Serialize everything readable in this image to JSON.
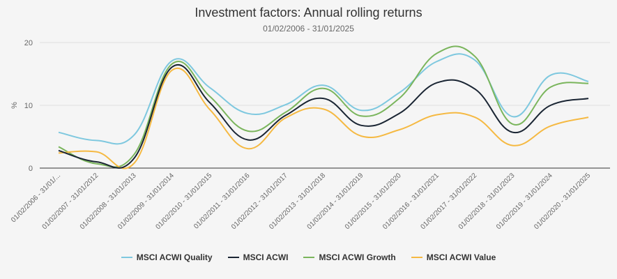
{
  "chart_data": {
    "type": "line",
    "title": "Investment factors: Annual rolling returns",
    "subtitle": "01/02/2006 - 31/01/2025",
    "ylabel": "%",
    "xlabel": "",
    "ylim": [
      0,
      20
    ],
    "yticks": [
      0,
      10,
      20
    ],
    "grid": true,
    "legend": "bottom",
    "categories": [
      "01/02/2006 - 31/01/...",
      "01/02/2007 - 31/01/2012",
      "01/02/2008 - 31/01/2013",
      "01/02/2009 - 31/01/2014",
      "01/02/2010 - 31/01/2015",
      "01/02/2011 - 31/01/2016",
      "01/02/2012 - 31/01/2017",
      "01/02/2013 - 31/01/2018",
      "01/02/2014 - 31/01/2019",
      "01/02/2015 - 31/01/2020",
      "01/02/2016 - 31/01/2021",
      "01/02/2017 - 31/01/2022",
      "01/02/2018 - 31/01/2023",
      "01/02/2019 - 31/01/2024",
      "01/02/2020 - 31/01/2025"
    ],
    "series": [
      {
        "name": "MSCI ACWI Quality",
        "color": "#7ec8df",
        "values": [
          5.7,
          4.4,
          5.3,
          17.1,
          12.8,
          8.7,
          10.1,
          13.2,
          9.2,
          12.0,
          17.0,
          17.2,
          8.2,
          14.8,
          13.8
        ]
      },
      {
        "name": "MSCI ACWI",
        "color": "#1a2533",
        "values": [
          2.8,
          1.0,
          1.6,
          16.1,
          10.4,
          4.5,
          8.4,
          11.1,
          6.8,
          8.7,
          13.6,
          12.6,
          5.7,
          10.0,
          11.1
        ]
      },
      {
        "name": "MSCI ACWI Growth",
        "color": "#7ab55c",
        "values": [
          3.4,
          0.7,
          2.2,
          16.6,
          11.4,
          5.9,
          8.9,
          12.7,
          8.3,
          11.1,
          18.3,
          17.8,
          7.0,
          12.9,
          13.5
        ]
      },
      {
        "name": "MSCI ACWI Value",
        "color": "#f5b942",
        "values": [
          2.4,
          2.6,
          0.8,
          15.6,
          9.3,
          3.1,
          8.0,
          9.4,
          5.1,
          6.1,
          8.5,
          8.1,
          3.6,
          6.7,
          8.1
        ]
      }
    ]
  }
}
